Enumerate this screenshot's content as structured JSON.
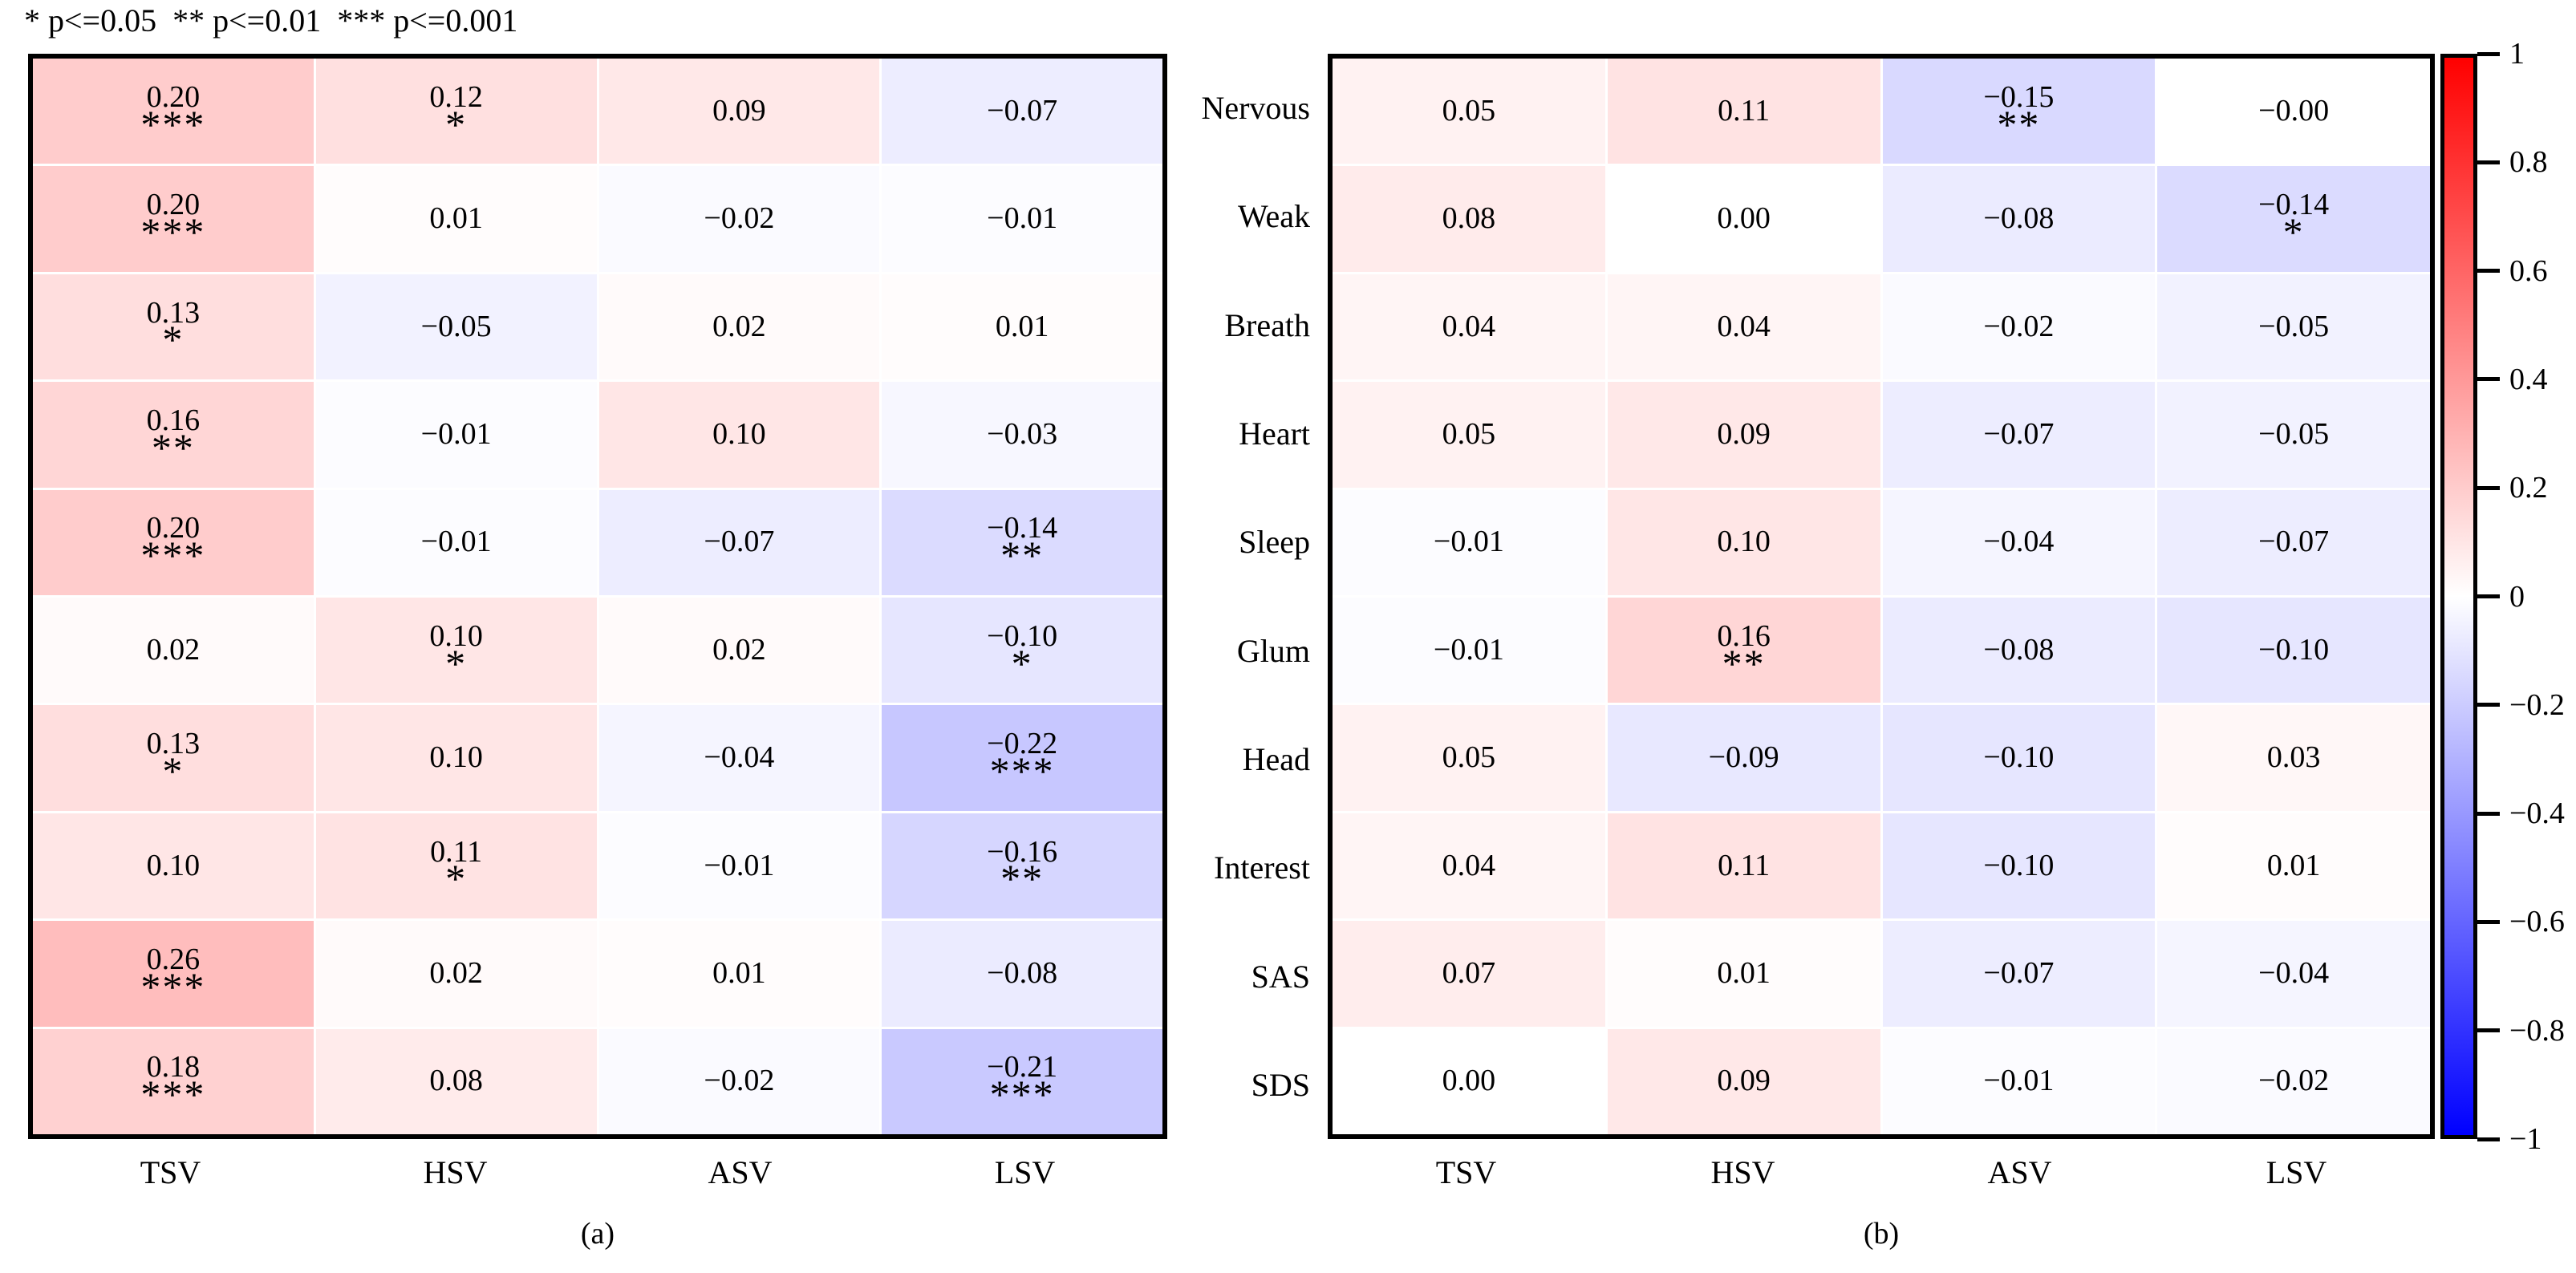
{
  "significance_legend": "* p<=0.05  ** p<=0.01  *** p<=0.001",
  "colorbar": {
    "ticks": [
      "1",
      "0.8",
      "0.6",
      "0.4",
      "0.2",
      "0",
      "-0.2",
      "-0.4",
      "-0.6",
      "-0.8",
      "-1"
    ],
    "min": -1,
    "max": 1,
    "top_color": "#ff0000",
    "mid_color": "#ffffff",
    "bottom_color": "#0000ff"
  },
  "chart_data": [
    {
      "type": "heatmap",
      "title": "(a)",
      "colormap": "blue-white-red",
      "vmin": -1,
      "vmax": 1,
      "columns": [
        "TSV",
        "HSV",
        "ASV",
        "LSV"
      ],
      "rows": [
        "Nervous",
        "Weak",
        "Breath",
        "Heart",
        "Sleep",
        "Glum",
        "Head",
        "Interest",
        "SAS",
        "SDS"
      ],
      "values": [
        [
          "0.20",
          "0.12",
          "0.09",
          "-0.07"
        ],
        [
          "0.20",
          "0.01",
          "-0.02",
          "-0.01"
        ],
        [
          "0.13",
          "-0.05",
          "0.02",
          "0.01"
        ],
        [
          "0.16",
          "-0.01",
          "0.10",
          "-0.03"
        ],
        [
          "0.20",
          "-0.01",
          "-0.07",
          "-0.14"
        ],
        [
          "0.02",
          "0.10",
          "0.02",
          "-0.10"
        ],
        [
          "0.13",
          "0.10",
          "-0.04",
          "-0.22"
        ],
        [
          "0.10",
          "0.11",
          "-0.01",
          "-0.16"
        ],
        [
          "0.26",
          "0.02",
          "0.01",
          "-0.08"
        ],
        [
          "0.18",
          "0.08",
          "-0.02",
          "-0.21"
        ]
      ],
      "significance": [
        [
          "***",
          "*",
          "",
          ""
        ],
        [
          "***",
          "",
          "",
          ""
        ],
        [
          "*",
          "",
          "",
          ""
        ],
        [
          "**",
          "",
          "",
          ""
        ],
        [
          "***",
          "",
          "",
          "**"
        ],
        [
          "",
          "*",
          "",
          "*"
        ],
        [
          "*",
          "",
          "",
          "***"
        ],
        [
          "",
          "*",
          "",
          "**"
        ],
        [
          "***",
          "",
          "",
          ""
        ],
        [
          "***",
          "",
          "",
          "***"
        ]
      ]
    },
    {
      "type": "heatmap",
      "title": "(b)",
      "colormap": "blue-white-red",
      "vmin": -1,
      "vmax": 1,
      "columns": [
        "TSV",
        "HSV",
        "ASV",
        "LSV"
      ],
      "rows": [
        "Nervous",
        "Weak",
        "Breath",
        "Heart",
        "Sleep",
        "Glum",
        "Head",
        "Interest",
        "SAS",
        "SDS"
      ],
      "values": [
        [
          "0.05",
          "0.11",
          "-0.15",
          "-0.00"
        ],
        [
          "0.08",
          "0.00",
          "-0.08",
          "-0.14"
        ],
        [
          "0.04",
          "0.04",
          "-0.02",
          "-0.05"
        ],
        [
          "0.05",
          "0.09",
          "-0.07",
          "-0.05"
        ],
        [
          "-0.01",
          "0.10",
          "-0.04",
          "-0.07"
        ],
        [
          "-0.01",
          "0.16",
          "-0.08",
          "-0.10"
        ],
        [
          "0.05",
          "-0.09",
          "-0.10",
          "0.03"
        ],
        [
          "0.04",
          "0.11",
          "-0.10",
          "0.01"
        ],
        [
          "0.07",
          "0.01",
          "-0.07",
          "-0.04"
        ],
        [
          "0.00",
          "0.09",
          "-0.01",
          "-0.02"
        ]
      ],
      "significance": [
        [
          "",
          "",
          "**",
          ""
        ],
        [
          "",
          "",
          "",
          "*"
        ],
        [
          "",
          "",
          "",
          ""
        ],
        [
          "",
          "",
          "",
          ""
        ],
        [
          "",
          "",
          "",
          ""
        ],
        [
          "",
          "**",
          "",
          ""
        ],
        [
          "",
          "",
          "",
          ""
        ],
        [
          "",
          "",
          "",
          ""
        ],
        [
          "",
          "",
          "",
          ""
        ],
        [
          "",
          "",
          "",
          ""
        ]
      ]
    }
  ]
}
